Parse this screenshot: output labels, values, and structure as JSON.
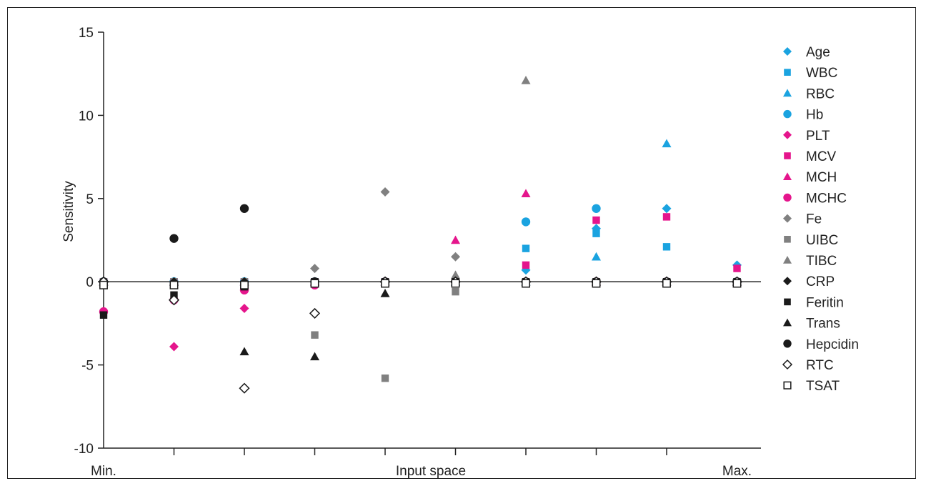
{
  "chart_data": {
    "type": "scatter",
    "title": "",
    "xlabel": "Input space",
    "ylabel": "Sensitivity",
    "x_tick_labels": [
      "Min.",
      "",
      "",
      "",
      "",
      "",
      "",
      "",
      "",
      "Max."
    ],
    "ylim": [
      -10,
      15
    ],
    "yticks": [
      -10,
      -5,
      0,
      5,
      10,
      15
    ],
    "legend_position": "right",
    "grid": false,
    "series": [
      {
        "name": "Age",
        "marker": "diamond",
        "color": "#1aa3e0",
        "filled": true,
        "y": [
          0,
          0,
          0,
          0,
          0,
          0,
          0.7,
          3.2,
          4.4,
          1.0
        ]
      },
      {
        "name": "WBC",
        "marker": "square",
        "color": "#1aa3e0",
        "filled": true,
        "y": [
          0,
          0,
          0,
          0,
          0,
          0,
          2.0,
          2.9,
          2.1,
          0
        ]
      },
      {
        "name": "RBC",
        "marker": "triangle",
        "color": "#1aa3e0",
        "filled": true,
        "y": [
          0,
          0,
          0,
          0,
          0,
          0,
          0,
          1.5,
          8.3,
          0
        ]
      },
      {
        "name": "Hb",
        "marker": "circle",
        "color": "#1aa3e0",
        "filled": true,
        "y": [
          0,
          0,
          0,
          0,
          0,
          0,
          3.6,
          4.4,
          0,
          0
        ]
      },
      {
        "name": "PLT",
        "marker": "diamond",
        "color": "#e5158c",
        "filled": true,
        "y": [
          0,
          -3.9,
          -1.6,
          0,
          0,
          0,
          0,
          0,
          0,
          0
        ]
      },
      {
        "name": "MCV",
        "marker": "square",
        "color": "#e5158c",
        "filled": true,
        "y": [
          0,
          0,
          0,
          0,
          0,
          0,
          1.0,
          3.7,
          3.9,
          0.8
        ]
      },
      {
        "name": "MCH",
        "marker": "triangle",
        "color": "#e5158c",
        "filled": true,
        "y": [
          0,
          0,
          0,
          0,
          0,
          2.5,
          5.3,
          0,
          0,
          0
        ]
      },
      {
        "name": "MCHC",
        "marker": "circle",
        "color": "#e5158c",
        "filled": true,
        "y": [
          -1.8,
          -1.1,
          -0.5,
          -0.2,
          0,
          0,
          0,
          0,
          0,
          0
        ]
      },
      {
        "name": "Fe",
        "marker": "diamond",
        "color": "#808080",
        "filled": true,
        "y": [
          0,
          0,
          0,
          0.8,
          5.4,
          1.5,
          0,
          0,
          0,
          0
        ]
      },
      {
        "name": "UIBC",
        "marker": "square",
        "color": "#808080",
        "filled": true,
        "y": [
          0,
          0,
          0,
          -3.2,
          -5.8,
          -0.6,
          0,
          0,
          0,
          0
        ]
      },
      {
        "name": "TIBC",
        "marker": "triangle",
        "color": "#808080",
        "filled": true,
        "y": [
          0,
          0,
          0,
          0,
          0,
          0.4,
          12.1,
          0,
          0,
          0
        ]
      },
      {
        "name": "CRP",
        "marker": "diamond",
        "color": "#1a1a1a",
        "filled": true,
        "y": [
          0,
          0,
          0,
          0,
          0,
          0,
          0,
          0,
          0,
          0
        ]
      },
      {
        "name": "Feritin",
        "marker": "square",
        "color": "#1a1a1a",
        "filled": true,
        "y": [
          -2.0,
          -0.8,
          -0.3,
          0,
          0,
          0,
          0,
          0,
          0,
          0
        ]
      },
      {
        "name": "Trans",
        "marker": "triangle",
        "color": "#1a1a1a",
        "filled": true,
        "y": [
          0,
          0,
          -4.2,
          -4.5,
          -0.7,
          0,
          0,
          0,
          0,
          0
        ]
      },
      {
        "name": "Hepcidin",
        "marker": "circle",
        "color": "#1a1a1a",
        "filled": true,
        "y": [
          0,
          2.6,
          4.4,
          0,
          0,
          0,
          0,
          0,
          0,
          0
        ]
      },
      {
        "name": "RTC",
        "marker": "diamond",
        "color": "#1a1a1a",
        "filled": false,
        "y": [
          0,
          -1.1,
          -6.4,
          -1.9,
          0,
          0,
          0,
          0,
          0,
          0
        ]
      },
      {
        "name": "TSAT",
        "marker": "square",
        "color": "#1a1a1a",
        "filled": false,
        "y": [
          -0.2,
          -0.2,
          -0.2,
          -0.1,
          -0.1,
          -0.1,
          -0.1,
          -0.1,
          -0.1,
          -0.1
        ]
      }
    ]
  }
}
